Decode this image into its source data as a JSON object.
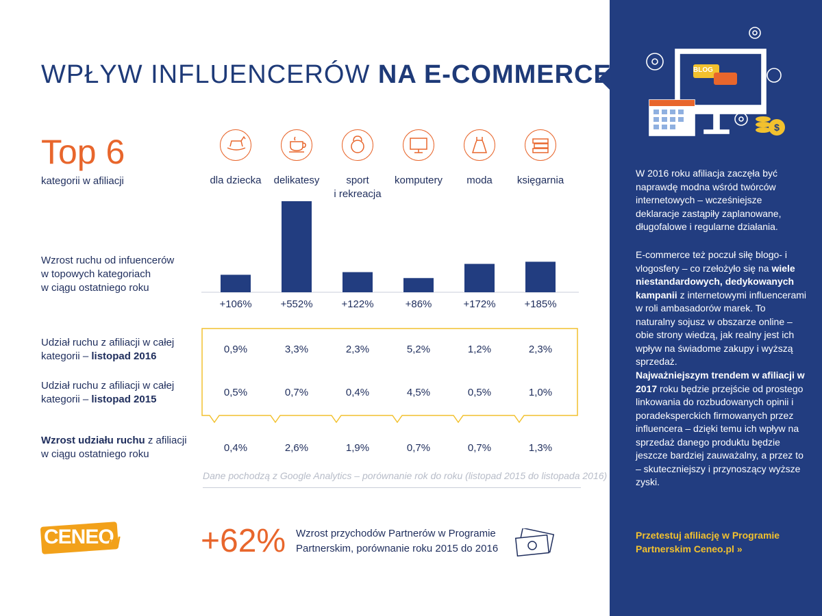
{
  "title": {
    "part1": "WPŁYW INFLUENCERÓW",
    "part2": "NA E-COMMERCE"
  },
  "top": {
    "heading": "Top 6",
    "subtitle": "kategorii w afiliacji"
  },
  "categories": [
    {
      "label": "dla dziecka",
      "icon": "rocking-horse-icon"
    },
    {
      "label": "delikatesy",
      "icon": "coffee-cup-icon"
    },
    {
      "label": "sport\ni rekreacja",
      "icon": "kettlebell-icon"
    },
    {
      "label": "komputery",
      "icon": "monitor-icon"
    },
    {
      "label": "moda",
      "icon": "dress-icon"
    },
    {
      "label": "księgarnia",
      "icon": "books-icon"
    }
  ],
  "row_labels": {
    "growth": "Wzrost ruchu od infuencerów\nw topowych kategoriach\nw ciągu ostatniego roku",
    "share2016_a": "Udział ruchu z afiliacji w całej\nkategorii – ",
    "share2016_b": "listopad 2016",
    "share2015_a": "Udział ruchu z afiliacji w całej\nkategorii – ",
    "share2015_b": "listopad 2015",
    "increase_a": "Wzrost udziału ruchu",
    "increase_b": " z afiliacji\nw ciągu ostatniego roku"
  },
  "chart_data": {
    "type": "bar",
    "categories": [
      "dla dziecka",
      "delikatesy",
      "sport i rekreacja",
      "komputery",
      "moda",
      "księgarnia"
    ],
    "values": [
      106,
      552,
      122,
      86,
      172,
      185
    ],
    "value_labels": [
      "+106%",
      "+552%",
      "+122%",
      "+86%",
      "+172%",
      "+185%"
    ],
    "title": "",
    "xlabel": "",
    "ylabel": "",
    "ylim": [
      0,
      560
    ],
    "grid": false,
    "bar_color": "#223d80"
  },
  "share_2016": [
    "0,9%",
    "3,3%",
    "2,3%",
    "5,2%",
    "1,2%",
    "2,3%"
  ],
  "share_2015": [
    "0,5%",
    "0,7%",
    "0,4%",
    "4,5%",
    "0,5%",
    "1,0%"
  ],
  "share_increase": [
    "0,4%",
    "2,6%",
    "1,9%",
    "0,7%",
    "0,7%",
    "1,3%"
  ],
  "footnote": "Dane pochodzą z Google Analytics – porównanie rok do roku (listopad 2015 do listopada 2016)",
  "bottom": {
    "logo": "CENEO",
    "logo_suffix": ".pl",
    "big_number": "+62%",
    "description": "Wzrost przychodów Partnerów w Programie Partnerskim, porównanie roku 2015 do 2016"
  },
  "sidebar": {
    "blog_badge": "BLOG",
    "p1": "W 2016 roku afiliacja zaczęła być naprawdę modna wśród twórców internetowych – wcześniejsze deklaracje zastąpiły zaplanowane, długofalowe i regularne działania.",
    "p2_a": "E-commerce też poczuł siłę blogo- i vlogosfery – co rzełożyło się na ",
    "p2_b": "wiele niestandardowych, dedykowanych kampanii",
    "p2_c": " z internetowymi influencerami w roli ambasadorów marek. To naturalny sojusz w obszarze online – obie strony wiedzą, jak realny jest ich wpływ na świadome zakupy i wyższą sprzedaż.",
    "p3_a": "Najważniejszym trendem w afiliacji w 2017",
    "p3_b": " roku będzie przejście od prostego linkowania do rozbudowanych opinii i poradeksperckich firmowanych przez influencera – dzięki temu ich wpływ na sprzedaż danego produktu będzie jeszcze bardziej zauważalny, a przez to – skuteczniejszy i przynoszący wyższe zyski.",
    "link": "Przetestuj afiliację w Programie Partnerskim Ceneo.pl »"
  },
  "colors": {
    "navy": "#223d80",
    "orange": "#e8662c",
    "yellow": "#f2c12e",
    "logo": "#f2a11a"
  }
}
